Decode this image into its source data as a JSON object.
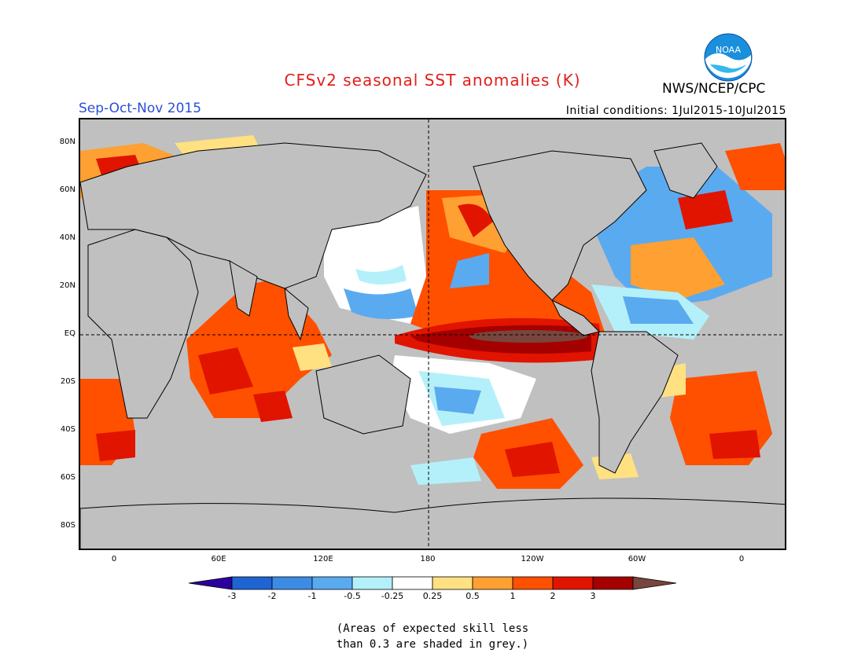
{
  "title": "CFSv2 seasonal SST anomalies (K)",
  "season": "Sep-Oct-Nov 2015",
  "initial_conditions": "Initial conditions: 1Jul2015-10Jul2015",
  "agency": "NWS/NCEP/CPC",
  "logo": {
    "text": "NOAA",
    "icon": "noaa-logo-icon"
  },
  "map": {
    "lat_labels": [
      "80N",
      "60N",
      "40N",
      "20N",
      "EQ",
      "20S",
      "40S",
      "60S",
      "80S"
    ],
    "lon_labels": [
      "0",
      "60E",
      "120E",
      "180",
      "120W",
      "60W",
      "0"
    ],
    "land_color": "#c0c0c0",
    "reference_lines": [
      "equator",
      "dateline"
    ]
  },
  "legend": {
    "labels": [
      "-3",
      "-2",
      "-1",
      "-0.5",
      "-0.25",
      "0.25",
      "0.5",
      "1",
      "2",
      "3"
    ],
    "colors": [
      "#2c009e",
      "#1e64d2",
      "#3c8ce6",
      "#5aaaf0",
      "#b4f0fa",
      "#ffffff",
      "#ffe182",
      "#ffa032",
      "#ff5000",
      "#e11400",
      "#a50000",
      "#78463c"
    ]
  },
  "skill_note": {
    "line1": "(Areas of expected skill less",
    "line2": "than 0.3 are shaded in grey.)"
  }
}
